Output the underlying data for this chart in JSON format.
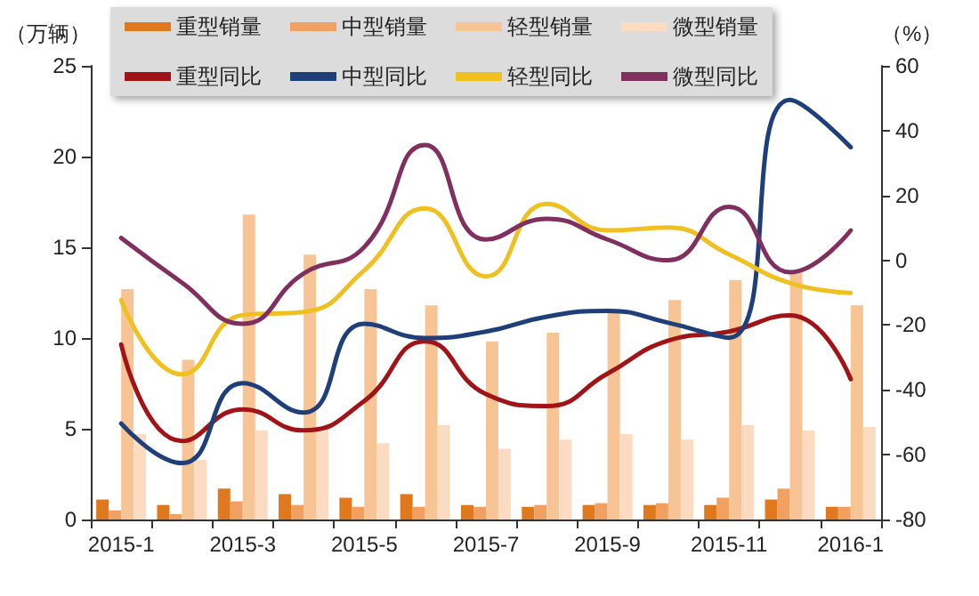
{
  "chart_data": {
    "type": "bar",
    "ylabel": "（万辆）",
    "y2label": "（%）",
    "categories": [
      "2015-1",
      null,
      "2015-3",
      null,
      "2015-5",
      null,
      "2015-7",
      null,
      "2015-9",
      null,
      "2015-11",
      null,
      "2016-1"
    ],
    "series": [
      {
        "name": "重型销量",
        "color": "#e0781e",
        "values": [
          1.1,
          0.8,
          1.7,
          1.4,
          1.2,
          1.4,
          0.8,
          0.7,
          0.8,
          0.8,
          0.8,
          1.1,
          0.7
        ]
      },
      {
        "name": "中型销量",
        "color": "#f0a060",
        "values": [
          0.5,
          0.3,
          1.0,
          0.8,
          0.7,
          0.7,
          0.7,
          0.8,
          0.9,
          0.9,
          1.2,
          1.7,
          0.7
        ]
      },
      {
        "name": "轻型销量",
        "color": "#f7c496",
        "values": [
          12.7,
          8.8,
          16.8,
          14.6,
          12.7,
          11.8,
          9.8,
          10.3,
          11.6,
          12.1,
          13.2,
          13.6,
          11.8
        ]
      },
      {
        "name": "微型销量",
        "color": "#fbdcc2",
        "values": [
          4.7,
          3.3,
          4.9,
          5.0,
          4.2,
          5.2,
          3.9,
          4.4,
          4.7,
          4.4,
          5.2,
          4.9,
          5.1
        ]
      },
      {
        "name": "重型同比",
        "type": "line",
        "axis": "y2",
        "color": "#a01418",
        "values": [
          -26,
          -55.8,
          -46,
          -52.5,
          -43.4,
          -25,
          -41.3,
          -45,
          -35,
          -24.8,
          -22,
          -17,
          -36.7
        ]
      },
      {
        "name": "中型同比",
        "type": "line",
        "axis": "y2",
        "color": "#1f3f7a",
        "values": [
          -50.4,
          -62.6,
          -37.9,
          -47,
          -19.6,
          -24,
          -22,
          -17.4,
          -15.6,
          -19.3,
          -23.9,
          49.5,
          34.9
        ]
      },
      {
        "name": "轻型同比",
        "type": "line",
        "axis": "y2",
        "color": "#f0c020",
        "values": [
          -12.3,
          -35.2,
          -16.9,
          -16,
          -3.1,
          16,
          -5,
          17.4,
          9.2,
          10.1,
          1.8,
          -7,
          -10.1
        ]
      },
      {
        "name": "微型同比",
        "type": "line",
        "axis": "y2",
        "color": "#80305e",
        "values": [
          6.9,
          -6.9,
          -19.6,
          -4.1,
          4.1,
          35.6,
          6.4,
          12.8,
          6.4,
          0,
          16.5,
          -3.7,
          9.2
        ]
      }
    ],
    "ylim": [
      0,
      25
    ],
    "yticks": [
      0,
      5,
      10,
      15,
      20,
      25
    ],
    "y2lim": [
      -80,
      60
    ],
    "y2ticks": [
      -80,
      -60,
      -40,
      -20,
      0,
      20,
      40,
      60
    ],
    "grid": false,
    "legend": "top",
    "marker": "none",
    "line_style": "solid"
  }
}
